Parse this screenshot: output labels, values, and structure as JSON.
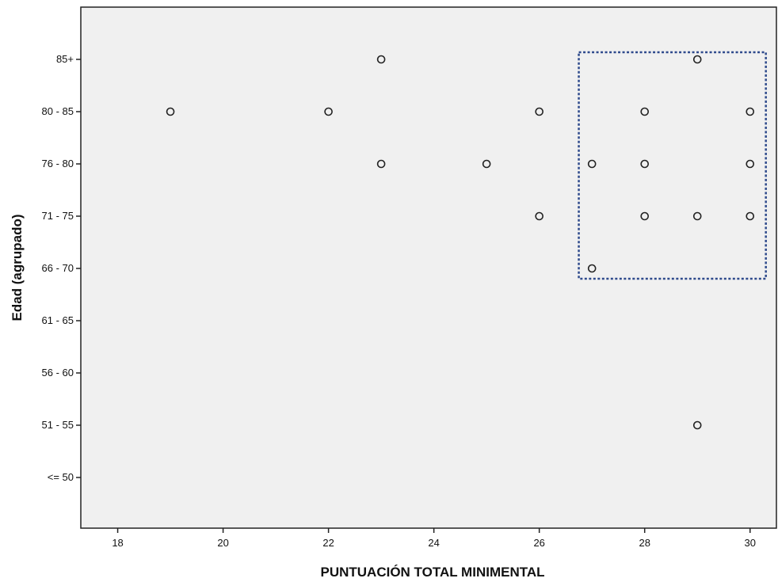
{
  "chart_data": {
    "type": "scatter",
    "title": "",
    "xlabel": "PUNTUACIÓN TOTAL MINIMENTAL",
    "ylabel": "Edad (agrupado)",
    "xlim": [
      17.3,
      30.5
    ],
    "x_ticks": [
      18,
      20,
      22,
      24,
      26,
      28,
      30
    ],
    "y_categories": [
      "<= 50",
      "51 - 55",
      "56 - 60",
      "61 - 65",
      "66 - 70",
      "71 - 75",
      "76 - 80",
      "80 - 85",
      "85+"
    ],
    "grid": false,
    "legend": "none",
    "plot_background": "#f0f0f0",
    "marker_color": "#222222",
    "highlight_color": "#2e4a8c",
    "points": [
      {
        "x": 19,
        "y": "80 - 85"
      },
      {
        "x": 22,
        "y": "80 - 85"
      },
      {
        "x": 23,
        "y": "85+"
      },
      {
        "x": 23,
        "y": "76 - 80"
      },
      {
        "x": 25,
        "y": "76 - 80"
      },
      {
        "x": 26,
        "y": "80 - 85"
      },
      {
        "x": 26,
        "y": "71 - 75"
      },
      {
        "x": 27,
        "y": "76 - 80"
      },
      {
        "x": 27,
        "y": "66 - 70"
      },
      {
        "x": 28,
        "y": "80 - 85"
      },
      {
        "x": 28,
        "y": "76 - 80"
      },
      {
        "x": 28,
        "y": "71 - 75"
      },
      {
        "x": 29,
        "y": "85+"
      },
      {
        "x": 29,
        "y": "71 - 75"
      },
      {
        "x": 29,
        "y": "51 - 55"
      },
      {
        "x": 30,
        "y": "80 - 85"
      },
      {
        "x": 30,
        "y": "76 - 80"
      },
      {
        "x": 30,
        "y": "71 - 75"
      }
    ],
    "highlight_region": {
      "x_range": [
        26.75,
        30.3
      ],
      "y_range": [
        "66 - 70",
        "85+"
      ]
    }
  }
}
